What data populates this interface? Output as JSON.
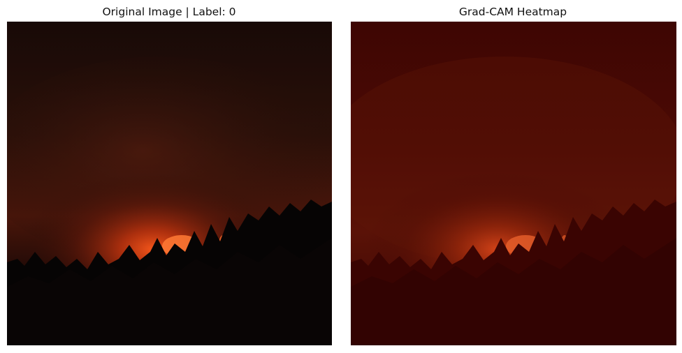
{
  "panels": [
    {
      "title": "Original Image | Label: 0"
    },
    {
      "title": "Grad-CAM Heatmap"
    }
  ],
  "colors": {
    "background": "#ffffff",
    "sky_top": "#1a0b08",
    "smoke_glow": "#6a1c0c",
    "fire_core": "#ff6a2a",
    "tree_silhouette": "#060404",
    "heatmap_overlay": "#5a0000"
  }
}
